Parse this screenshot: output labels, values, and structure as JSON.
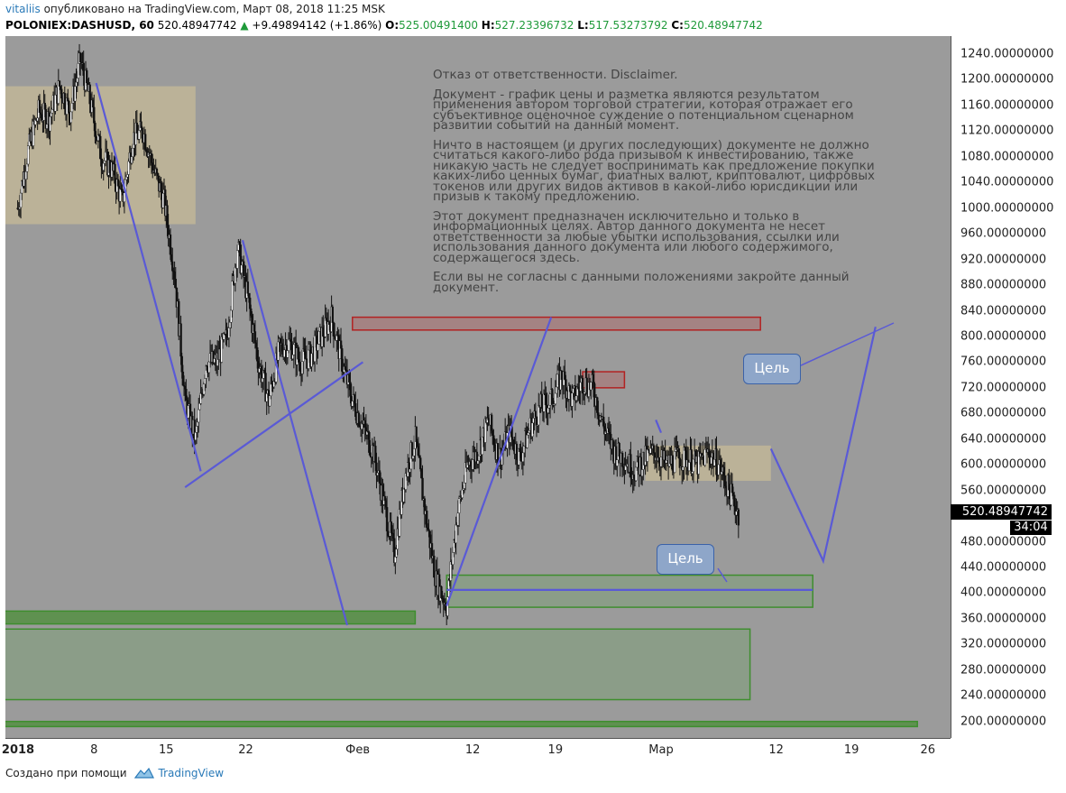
{
  "header": {
    "user": "vitaliis",
    "published": "опубликовано на TradingView.com, Март 08, 2018 11:25 MSK",
    "symbol": "POLONIEX:DASHUSD, 60",
    "last": "520.48947742",
    "arrow": "▲",
    "change": "+9.49894142 (+1.86%)",
    "o_label": "O:",
    "o_value": "525.00491400",
    "h_label": "H:",
    "h_value": "527.23396732",
    "l_label": "L:",
    "l_value": "517.53273792",
    "c_label": "C:",
    "c_value": "520.48947742"
  },
  "disclaimer": {
    "title": "Отказ от ответственности. Disclaimer.",
    "p1": "Документ - график цены и разметка являются результатом применения автором торговой стратегии, которая отражает его субъективное оценочное суждение о потенциальном сценарном развитии событий на данный момент.",
    "p2": "Ничто в настоящем (и других последующих) документе не должно считаться какого-либо рода призывом к инвестированию, также никакую часть не следует воспринимать как предложение покупки каких-либо ценных бумаг, фиатных валют, криптовалют, цифровых токенов или других видов активов в какой-либо юрисдикции или призыв к такому предложению.",
    "p3": "Этот документ предназначен исключительно и только в информационных целях. Автор данного документа не несет ответственности за любые убытки использования, ссылки или использования данного документа или любого содержимого, содержащегося здесь.",
    "p4": "Если вы не согласны с данными положениями закройте данный документ."
  },
  "callouts": {
    "target_upper": "Цель",
    "target_lower": "Цель"
  },
  "price_tag": {
    "value": "520.48947742",
    "timer": "34:04"
  },
  "footer": {
    "created_with": "Создано при помощи",
    "brand": "TradingView"
  },
  "colors": {
    "plot_bg": "#9b9b9b",
    "trendline": "#5a5ad6",
    "red_zone": "#b22222",
    "green_zone": "#3e8e2e",
    "tan_zone": "#c8b48a"
  },
  "chart_data": {
    "type": "candlestick",
    "symbol": "POLONIEX:DASHUSD",
    "interval": "60",
    "ylim": [
      180,
      1260
    ],
    "yticks": [
      "1240.00000000",
      "1200.00000000",
      "1160.00000000",
      "1120.00000000",
      "1080.00000000",
      "1040.00000000",
      "1000.00000000",
      "960.00000000",
      "920.00000000",
      "880.00000000",
      "840.00000000",
      "800.00000000",
      "760.00000000",
      "720.00000000",
      "680.00000000",
      "640.00000000",
      "600.00000000",
      "560.00000000",
      "520.00000000",
      "480.00000000",
      "440.00000000",
      "400.00000000",
      "360.00000000",
      "320.00000000",
      "280.00000000",
      "240.00000000",
      "200.00000000"
    ],
    "xticks": [
      "2018",
      "8",
      "15",
      "22",
      "Фев",
      "12",
      "19",
      "Мар",
      "12",
      "19",
      "26"
    ],
    "price_path_days": [
      [
        1,
        1000
      ],
      [
        2,
        1090
      ],
      [
        3,
        1150
      ],
      [
        4,
        1140
      ],
      [
        5,
        1190
      ],
      [
        6,
        1150
      ],
      [
        7,
        1230
      ],
      [
        8,
        1160
      ],
      [
        9,
        1080
      ],
      [
        10,
        1060
      ],
      [
        11,
        1010
      ],
      [
        12,
        1110
      ],
      [
        13,
        1120
      ],
      [
        14,
        1060
      ],
      [
        15,
        1010
      ],
      [
        16,
        900
      ],
      [
        17,
        700
      ],
      [
        18,
        640
      ],
      [
        19,
        760
      ],
      [
        20,
        760
      ],
      [
        21,
        800
      ],
      [
        22,
        940
      ],
      [
        23,
        860
      ],
      [
        24,
        760
      ],
      [
        25,
        700
      ],
      [
        26,
        780
      ],
      [
        27,
        790
      ],
      [
        28,
        760
      ],
      [
        29,
        770
      ],
      [
        30,
        800
      ],
      [
        31,
        830
      ],
      [
        32,
        760
      ],
      [
        33,
        700
      ],
      [
        34,
        660
      ],
      [
        35,
        620
      ],
      [
        36,
        540
      ],
      [
        37,
        460
      ],
      [
        38,
        580
      ],
      [
        39,
        640
      ],
      [
        40,
        520
      ],
      [
        41,
        420
      ],
      [
        42,
        380
      ],
      [
        43,
        520
      ],
      [
        44,
        600
      ],
      [
        45,
        620
      ],
      [
        46,
        670
      ],
      [
        47,
        610
      ],
      [
        48,
        650
      ],
      [
        49,
        610
      ],
      [
        50,
        660
      ],
      [
        51,
        690
      ],
      [
        52,
        700
      ],
      [
        53,
        740
      ],
      [
        54,
        700
      ],
      [
        55,
        730
      ],
      [
        56,
        720
      ],
      [
        57,
        660
      ],
      [
        58,
        620
      ],
      [
        59,
        610
      ],
      [
        60,
        590
      ],
      [
        61,
        610
      ],
      [
        62,
        620
      ],
      [
        63,
        600
      ],
      [
        64,
        610
      ],
      [
        65,
        610
      ],
      [
        66,
        600
      ],
      [
        67,
        620
      ],
      [
        68,
        600
      ],
      [
        69,
        560
      ],
      [
        70,
        520
      ]
    ],
    "zones": [
      {
        "kind": "resistance",
        "color": "red",
        "x": [
          33,
          72
        ],
        "y": [
          810,
          830
        ]
      },
      {
        "kind": "resistance",
        "color": "red",
        "x": [
          55,
          59
        ],
        "y": [
          720,
          745
        ]
      },
      {
        "kind": "range",
        "color": "tan",
        "x": [
          0,
          18
        ],
        "y": [
          975,
          1190
        ]
      },
      {
        "kind": "range",
        "color": "tan",
        "x": [
          61,
          73
        ],
        "y": [
          575,
          630
        ]
      },
      {
        "kind": "support",
        "color": "green",
        "x": [
          42,
          77
        ],
        "y": [
          378,
          428
        ]
      },
      {
        "kind": "support",
        "color": "green",
        "x": [
          0,
          39
        ],
        "y": [
          352,
          372
        ]
      },
      {
        "kind": "support",
        "color": "green",
        "x": [
          0,
          71
        ],
        "y": [
          234,
          344
        ]
      },
      {
        "kind": "support",
        "color": "green",
        "x": [
          0,
          87
        ],
        "y": [
          192,
          200
        ]
      }
    ],
    "trendlines": [
      {
        "x": [
          8.5,
          18.5
        ],
        "y": [
          1195,
          590
        ]
      },
      {
        "x": [
          17,
          34
        ],
        "y": [
          565,
          760
        ]
      },
      {
        "x": [
          22.5,
          32.5
        ],
        "y": [
          950,
          350
        ]
      },
      {
        "x": [
          42,
          52
        ],
        "y": [
          380,
          830
        ]
      },
      {
        "x": [
          42,
          77
        ],
        "y": [
          405,
          405
        ]
      },
      {
        "x": [
          73,
          78,
          83
        ],
        "y": [
          625,
          450,
          815
        ]
      },
      {
        "x": [
          62,
          62.5
        ],
        "y": [
          670,
          650
        ]
      }
    ]
  }
}
